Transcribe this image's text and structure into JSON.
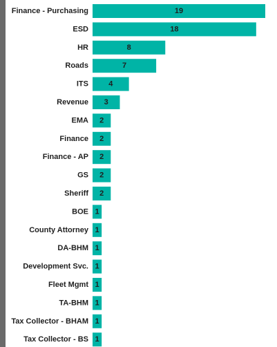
{
  "chart_data": {
    "type": "bar",
    "orientation": "horizontal",
    "categories": [
      "Finance - Purchasing",
      "ESD",
      "HR",
      "Roads",
      "ITS",
      "Revenue",
      "EMA",
      "Finance",
      "Finance - AP",
      "GS",
      "Sheriff",
      "BOE",
      "County Attorney",
      "DA-BHM",
      "Development Svc.",
      "Fleet Mgmt",
      "TA-BHM",
      "Tax Collector - BHAM",
      "Tax Collector - BS"
    ],
    "values": [
      19,
      18,
      8,
      7,
      4,
      3,
      2,
      2,
      2,
      2,
      2,
      1,
      1,
      1,
      1,
      1,
      1,
      1,
      1
    ],
    "xlim": [
      0,
      19
    ],
    "grid": false,
    "legend": "none",
    "data_labels": true,
    "bar_color": "#00b4a6"
  }
}
